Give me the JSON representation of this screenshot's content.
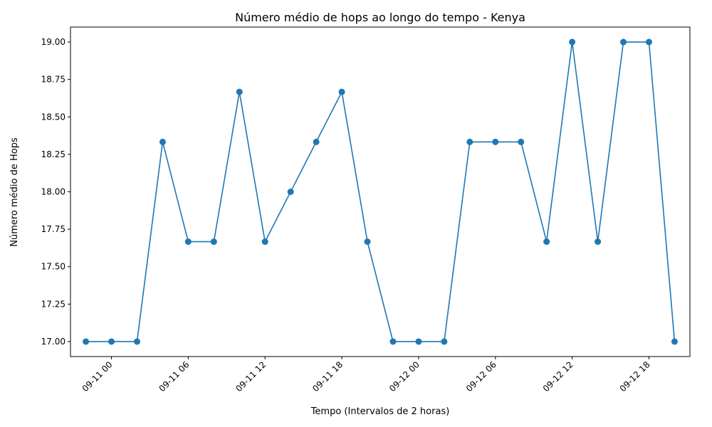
{
  "chart_data": {
    "type": "line",
    "title": "Número médio de hops ao longo do tempo - Kenya",
    "xlabel": "Tempo (Intervalos de 2 horas)",
    "ylabel": "Número médio de Hops",
    "grid": false,
    "legend": "none",
    "color": "#1f77b4",
    "marker": "circle",
    "x": [
      "2023-09-10 22:00",
      "2023-09-11 00:00",
      "2023-09-11 02:00",
      "2023-09-11 04:00",
      "2023-09-11 06:00",
      "2023-09-11 08:00",
      "2023-09-11 10:00",
      "2023-09-11 12:00",
      "2023-09-11 14:00",
      "2023-09-11 16:00",
      "2023-09-11 18:00",
      "2023-09-11 20:00",
      "2023-09-11 22:00",
      "2023-09-12 00:00",
      "2023-09-12 02:00",
      "2023-09-12 04:00",
      "2023-09-12 06:00",
      "2023-09-12 08:00",
      "2023-09-12 10:00",
      "2023-09-12 12:00",
      "2023-09-12 14:00",
      "2023-09-12 16:00",
      "2023-09-12 18:00",
      "2023-09-12 20:00"
    ],
    "y": [
      17.0,
      17.0,
      17.0,
      18.333,
      17.667,
      17.667,
      18.667,
      17.667,
      18.0,
      18.333,
      18.667,
      17.667,
      17.0,
      17.0,
      17.0,
      18.333,
      18.333,
      18.333,
      17.667,
      19.0,
      17.667,
      19.0,
      19.0,
      17.0
    ],
    "xlim": [
      "2023-09-10 20:48",
      "2023-09-12 21:12"
    ],
    "ylim": [
      16.9,
      19.1
    ],
    "x_ticks": [
      {
        "at": "2023-09-11 00:00",
        "label": "09-11 00"
      },
      {
        "at": "2023-09-11 06:00",
        "label": "09-11 06"
      },
      {
        "at": "2023-09-11 12:00",
        "label": "09-11 12"
      },
      {
        "at": "2023-09-11 18:00",
        "label": "09-11 18"
      },
      {
        "at": "2023-09-12 00:00",
        "label": "09-12 00"
      },
      {
        "at": "2023-09-12 06:00",
        "label": "09-12 06"
      },
      {
        "at": "2023-09-12 12:00",
        "label": "09-12 12"
      },
      {
        "at": "2023-09-12 18:00",
        "label": "09-12 18"
      }
    ],
    "y_ticks": [
      {
        "at": 17.0,
        "label": "17.00"
      },
      {
        "at": 17.25,
        "label": "17.25"
      },
      {
        "at": 17.5,
        "label": "17.50"
      },
      {
        "at": 17.75,
        "label": "17.75"
      },
      {
        "at": 18.0,
        "label": "18.00"
      },
      {
        "at": 18.25,
        "label": "18.25"
      },
      {
        "at": 18.5,
        "label": "18.50"
      },
      {
        "at": 18.75,
        "label": "18.75"
      },
      {
        "at": 19.0,
        "label": "19.00"
      }
    ]
  }
}
